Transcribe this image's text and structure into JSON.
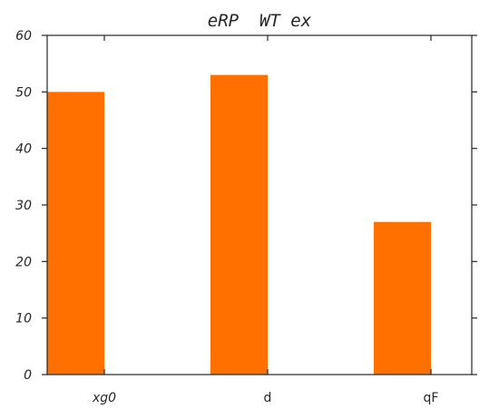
{
  "chart_data": {
    "type": "bar",
    "title": "eRP  WT ex",
    "categories": [
      "xg0",
      "d",
      "qF"
    ],
    "category_italic": [
      true,
      false,
      false
    ],
    "values": [
      50,
      53,
      27
    ],
    "ylim": [
      0,
      60
    ],
    "yticks": [
      0,
      10,
      20,
      30,
      40,
      50,
      60
    ],
    "xlabel": "",
    "ylabel": "",
    "grid": false,
    "bar_color": "#ff7000"
  }
}
